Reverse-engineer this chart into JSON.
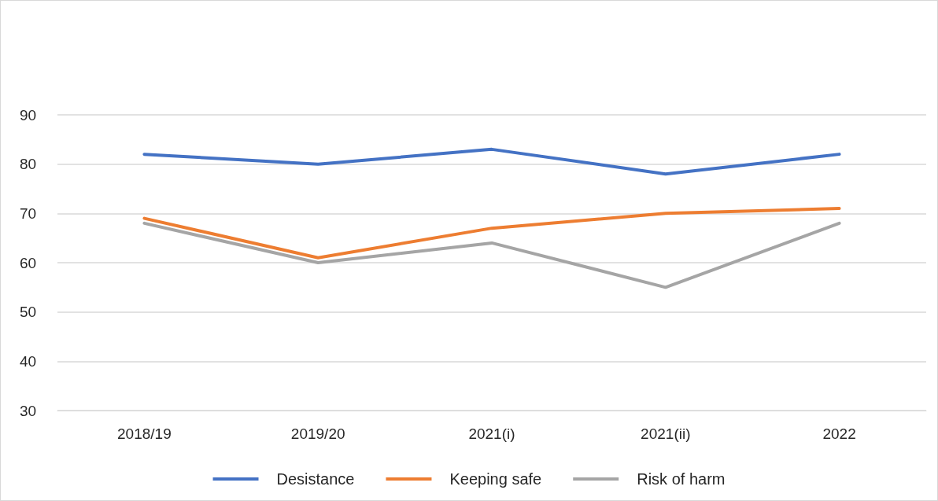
{
  "chart_data": {
    "type": "line",
    "categories": [
      "2018/19",
      "2019/20",
      "2021(i)",
      "2021(ii)",
      "2022"
    ],
    "series": [
      {
        "name": "Desistance",
        "color": "#4472c4",
        "values": [
          82,
          80,
          83,
          78,
          82
        ]
      },
      {
        "name": "Keeping safe",
        "color": "#ed7d31",
        "values": [
          69,
          61,
          67,
          70,
          71
        ]
      },
      {
        "name": "Risk of harm",
        "color": "#a5a5a5",
        "values": [
          68,
          60,
          64,
          55,
          68
        ]
      }
    ],
    "ylim": [
      30,
      90
    ],
    "yticks": [
      30,
      40,
      50,
      60,
      70,
      80,
      90
    ],
    "grid": "y",
    "legend": "bottom",
    "marker": "none",
    "line_style": "solid"
  }
}
